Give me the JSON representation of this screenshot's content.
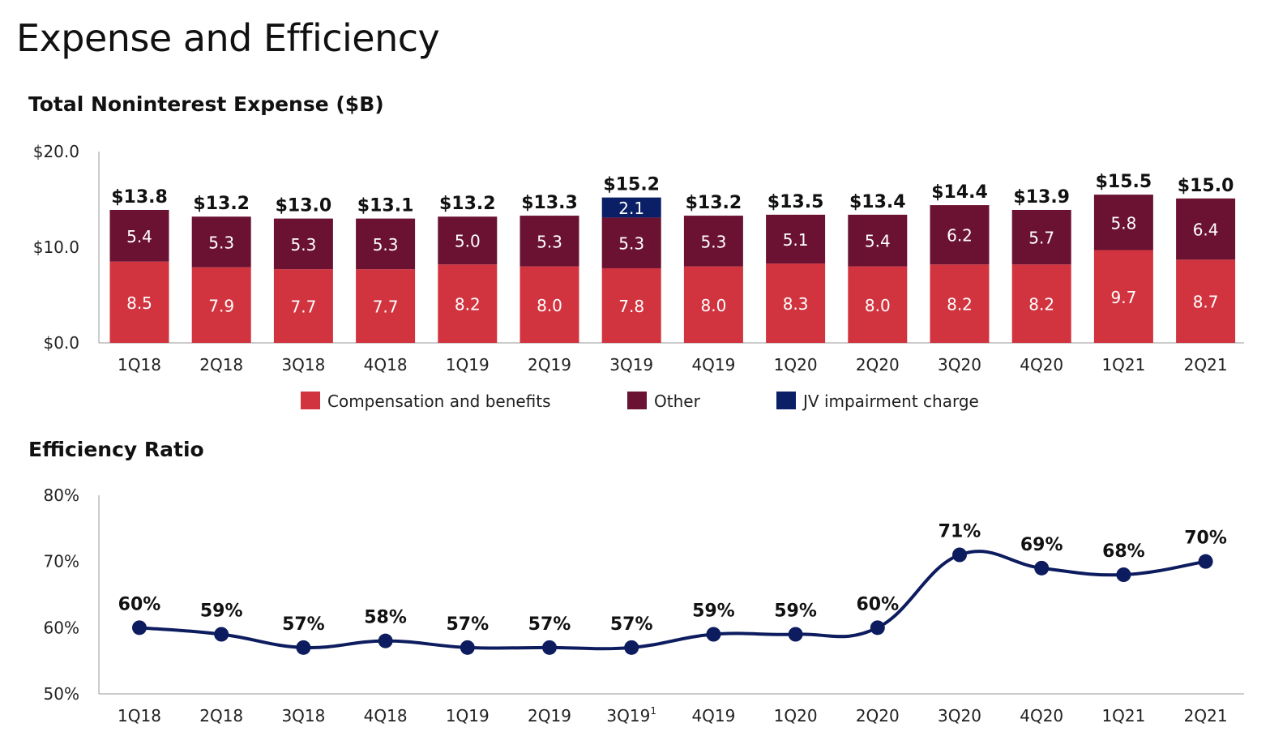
{
  "title": "Expense and Efficiency",
  "chart_data": [
    {
      "type": "bar",
      "stacked": true,
      "title": "Total Noninterest Expense ($B)",
      "categories": [
        "1Q18",
        "2Q18",
        "3Q18",
        "4Q18",
        "1Q19",
        "2Q19",
        "3Q19",
        "4Q19",
        "1Q20",
        "2Q20",
        "3Q20",
        "4Q20",
        "1Q21",
        "2Q21"
      ],
      "series": [
        {
          "name": "Compensation and benefits",
          "color": "#d1343f",
          "values": [
            8.5,
            7.9,
            7.7,
            7.7,
            8.2,
            8.0,
            7.8,
            8.0,
            8.3,
            8.0,
            8.2,
            8.2,
            9.7,
            8.7
          ]
        },
        {
          "name": "Other",
          "color": "#6b1232",
          "values": [
            5.4,
            5.3,
            5.3,
            5.3,
            5.0,
            5.3,
            5.3,
            5.3,
            5.1,
            5.4,
            6.2,
            5.7,
            5.8,
            6.4
          ]
        },
        {
          "name": "JV impairment charge",
          "color": "#0b1f66",
          "values": [
            null,
            null,
            null,
            null,
            null,
            null,
            2.1,
            null,
            null,
            null,
            null,
            null,
            null,
            null
          ]
        }
      ],
      "totals": [
        "$13.8",
        "$13.2",
        "$13.0",
        "$13.1",
        "$13.2",
        "$13.3",
        "$15.2",
        "$13.2",
        "$13.5",
        "$13.4",
        "$14.4",
        "$13.9",
        "$15.5",
        "$15.0"
      ],
      "ylim": [
        0,
        20
      ],
      "yticks": [
        "$0.0",
        "$10.0",
        "$20.0"
      ],
      "legend": "bottom"
    },
    {
      "type": "line",
      "title": "Efficiency Ratio",
      "categories": [
        "1Q18",
        "2Q18",
        "3Q18",
        "4Q18",
        "1Q19",
        "2Q19",
        "3Q19",
        "4Q19",
        "1Q20",
        "2Q20",
        "3Q20",
        "4Q20",
        "1Q21",
        "2Q21"
      ],
      "category_footnotes": {
        "3Q19": "1"
      },
      "color": "#0d1c5e",
      "values": [
        60,
        59,
        57,
        58,
        57,
        57,
        57,
        59,
        59,
        60,
        71,
        69,
        68,
        70
      ],
      "labels": [
        "60%",
        "59%",
        "57%",
        "58%",
        "57%",
        "57%",
        "57%",
        "59%",
        "59%",
        "60%",
        "71%",
        "69%",
        "68%",
        "70%"
      ],
      "ylim": [
        50,
        80
      ],
      "yticks": [
        "50%",
        "60%",
        "70%",
        "80%"
      ]
    }
  ]
}
